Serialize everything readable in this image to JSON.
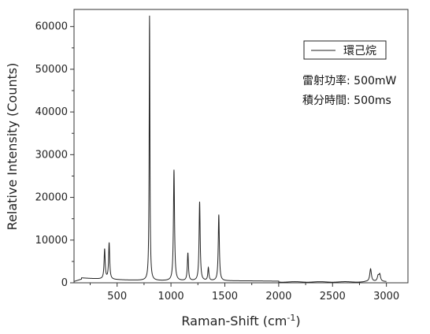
{
  "chart_data": {
    "type": "line",
    "title": "",
    "xlabel": "Raman-Shift (cm",
    "xlabel_sup": "-1",
    "xlabel_tail": ")",
    "ylabel": "Relative Intensity (Counts)",
    "xlim": [
      100,
      3200
    ],
    "ylim": [
      0,
      64000
    ],
    "x_ticks": [
      500,
      1000,
      1500,
      2000,
      2500,
      3000
    ],
    "x_tick_labels": [
      "500",
      "1000",
      "1500",
      "2000",
      "2500",
      "3000"
    ],
    "y_ticks": [
      0,
      10000,
      20000,
      30000,
      40000,
      50000,
      60000
    ],
    "y_tick_labels": [
      "0",
      "10000",
      "20000",
      "30000",
      "40000",
      "50000",
      "60000"
    ],
    "grid": false,
    "legend_position": "top-right",
    "series": [
      {
        "name": "環己烷",
        "color": "#222222",
        "peaks": [
          {
            "x": 384,
            "y": 7000
          },
          {
            "x": 426,
            "y": 8500
          },
          {
            "x": 801,
            "y": 62000
          },
          {
            "x": 1028,
            "y": 26000
          },
          {
            "x": 1157,
            "y": 6500
          },
          {
            "x": 1266,
            "y": 18500
          },
          {
            "x": 1347,
            "y": 3000
          },
          {
            "x": 1444,
            "y": 15500
          },
          {
            "x": 2853,
            "y": 3000
          },
          {
            "x": 2923,
            "y": 1200
          },
          {
            "x": 2938,
            "y": 1600
          }
        ]
      }
    ],
    "annotations": [
      "雷射功率: 500mW",
      "積分時間: 500ms"
    ]
  }
}
